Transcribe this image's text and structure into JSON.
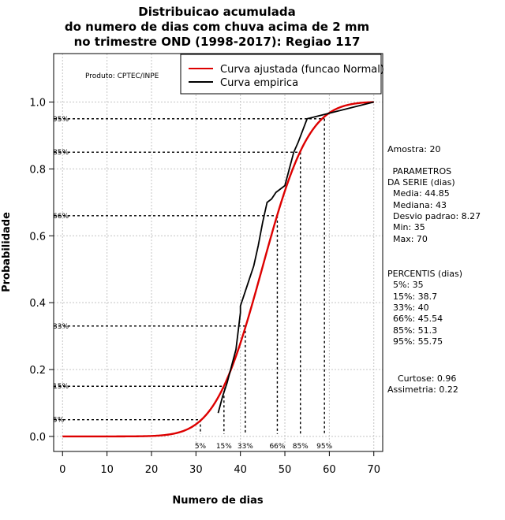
{
  "chart_data": {
    "type": "line",
    "title": [
      "Distribuicao acumulada",
      "do numero de dias com chuva acima de 2 mm",
      "no trimestre OND (1998-2017): Regiao 117"
    ],
    "xlabel": "Numero de dias",
    "ylabel": "Probabilidade",
    "xlim": [
      -2,
      72
    ],
    "ylim": [
      -0.045,
      1.145
    ],
    "xticks": [
      0,
      10,
      20,
      30,
      40,
      50,
      60,
      70
    ],
    "yticks": [
      0.0,
      0.2,
      0.4,
      0.6,
      0.8,
      1.0
    ],
    "xtick_labels": [
      "0",
      "10",
      "20",
      "30",
      "40",
      "50",
      "60",
      "70"
    ],
    "ytick_labels": [
      "0.0",
      "0.2",
      "0.4",
      "0.6",
      "0.8",
      "1.0"
    ],
    "grid": true,
    "legend_position": "top-right",
    "product_note": "Produto: CPTEC/INPE",
    "series": [
      {
        "name": "Curva ajustada (funcao Normal)",
        "color": "#dd0000",
        "kind": "normal_cdf",
        "mean": 44.85,
        "sd": 8.27,
        "x_range": [
          0,
          70
        ],
        "renormalize": true
      },
      {
        "name": "Curva empirica",
        "color": "#000000",
        "x": [
          35,
          36,
          37,
          38,
          39,
          40,
          40,
          41,
          42,
          43,
          44,
          45,
          46,
          47,
          48,
          49,
          50,
          51,
          52,
          53,
          55,
          70
        ],
        "y": [
          0.07,
          0.12,
          0.16,
          0.21,
          0.26,
          0.37,
          0.39,
          0.43,
          0.47,
          0.51,
          0.57,
          0.64,
          0.7,
          0.71,
          0.73,
          0.74,
          0.75,
          0.8,
          0.85,
          0.88,
          0.95,
          1.0
        ]
      }
    ],
    "percentile_markers": [
      {
        "label": "5%",
        "p": 0.05,
        "x": 31.0
      },
      {
        "label": "15%",
        "p": 0.15,
        "x": 36.3
      },
      {
        "label": "33%",
        "p": 0.33,
        "x": 41.1
      },
      {
        "label": "66%",
        "p": 0.66,
        "x": 48.3
      },
      {
        "label": "85%",
        "p": 0.85,
        "x": 53.5
      },
      {
        "label": "95%",
        "p": 0.95,
        "x": 58.9
      }
    ]
  },
  "side_panel": {
    "sample": "Amostra: 20",
    "params_title": [
      " PARAMETROS",
      "DA SERIE (dias)"
    ],
    "params": [
      "  Media: 44.85",
      "  Mediana: 43",
      "  Desvio padrao: 8.27",
      "  Min: 35",
      "  Max: 70"
    ],
    "percentiles_title": "PERCENTIS (dias)",
    "percentiles": [
      "  5%: 35",
      "  15%: 38.7",
      "  33%: 40",
      "  66%: 45.54",
      "  85%: 51.3",
      "  95%: 55.75"
    ],
    "shape": [
      "  Curtose: 0.96",
      "Assimetria: 0.22"
    ]
  }
}
